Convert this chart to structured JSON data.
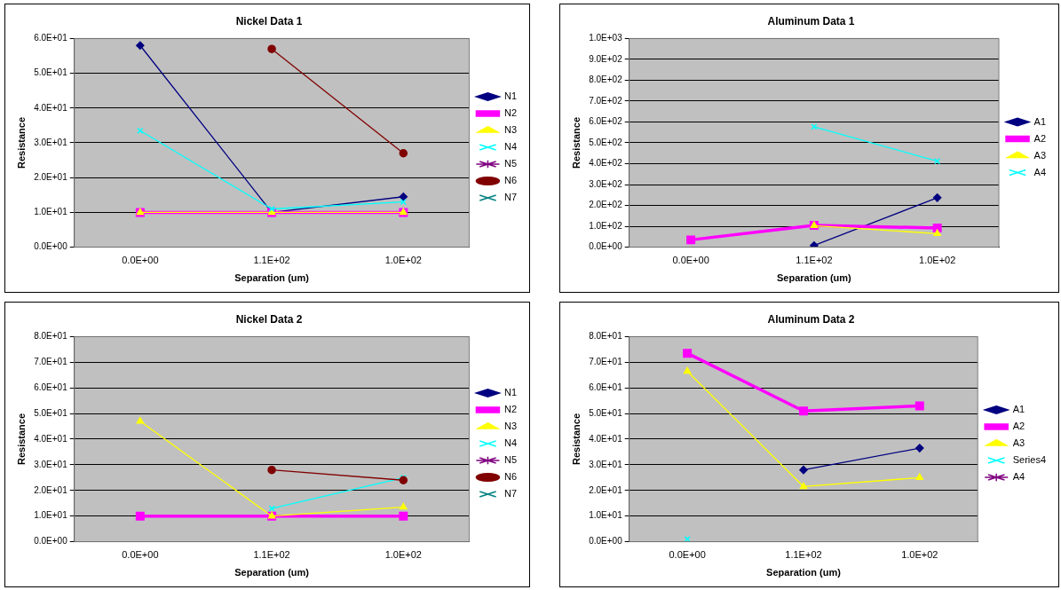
{
  "chart_data": [
    {
      "type": "line",
      "title": "Nickel Data 1",
      "xlabel": "Separation (um)",
      "ylabel": "Resistance",
      "categories": [
        "0.0E+00",
        "1.1E+02",
        "1.0E+02"
      ],
      "ylim": [
        0,
        60
      ],
      "yticks": [
        {
          "value": 0,
          "label": "0.0E+00"
        },
        {
          "value": 10,
          "label": "1.0E+01"
        },
        {
          "value": 20,
          "label": "2.0E+01"
        },
        {
          "value": 30,
          "label": "3.0E+01"
        },
        {
          "value": 40,
          "label": "4.0E+01"
        },
        {
          "value": 50,
          "label": "5.0E+01"
        },
        {
          "value": 60,
          "label": "6.0E+01"
        }
      ],
      "grid": "y",
      "legend": "right",
      "series": [
        {
          "name": "N1",
          "color": "#000080",
          "marker": "diamond",
          "values": [
            58,
            10,
            14.5
          ]
        },
        {
          "name": "N2",
          "color": "#ff00ff",
          "marker": "square",
          "values": [
            10,
            10,
            10
          ]
        },
        {
          "name": "N3",
          "color": "#ffff00",
          "marker": "triangle",
          "values": [
            10,
            10,
            10
          ]
        },
        {
          "name": "N4",
          "color": "#00ffff",
          "marker": "cross",
          "values": [
            33.5,
            11,
            13
          ]
        },
        {
          "name": "N5",
          "color": "#800080",
          "marker": "star",
          "values": [
            null,
            null,
            null
          ]
        },
        {
          "name": "N6",
          "color": "#800000",
          "marker": "circle",
          "values": [
            null,
            57,
            27
          ]
        },
        {
          "name": "N7",
          "color": "#008080",
          "marker": "cross",
          "values": [
            null,
            null,
            null
          ]
        }
      ]
    },
    {
      "type": "line",
      "title": "Aluminum Data 1",
      "xlabel": "Separation (um)",
      "ylabel": "Resistance",
      "categories": [
        "0.0E+00",
        "1.1E+02",
        "1.0E+02"
      ],
      "ylim": [
        0,
        1000
      ],
      "yticks": [
        {
          "value": 0,
          "label": "0.0E+00"
        },
        {
          "value": 100,
          "label": "1.0E+02"
        },
        {
          "value": 200,
          "label": "2.0E+02"
        },
        {
          "value": 300,
          "label": "3.0E+02"
        },
        {
          "value": 400,
          "label": "4.0E+02"
        },
        {
          "value": 500,
          "label": "5.0E+02"
        },
        {
          "value": 600,
          "label": "6.0E+02"
        },
        {
          "value": 700,
          "label": "7.0E+02"
        },
        {
          "value": 800,
          "label": "8.0E+02"
        },
        {
          "value": 900,
          "label": "9.0E+02"
        },
        {
          "value": 1000,
          "label": "1.0E+03"
        }
      ],
      "grid": "y",
      "legend": "right",
      "series": [
        {
          "name": "A1",
          "color": "#000080",
          "marker": "diamond",
          "values": [
            null,
            8,
            237
          ]
        },
        {
          "name": "A2",
          "color": "#ff00ff",
          "marker": "square",
          "values": [
            35,
            105,
            92
          ]
        },
        {
          "name": "A3",
          "color": "#ffff00",
          "marker": "triangle",
          "values": [
            null,
            103,
            65
          ]
        },
        {
          "name": "A4",
          "color": "#00ffff",
          "marker": "cross",
          "values": [
            null,
            577,
            412
          ]
        }
      ]
    },
    {
      "type": "line",
      "title": "Nickel Data 2",
      "xlabel": "Separation (um)",
      "ylabel": "Resistance",
      "categories": [
        "0.0E+00",
        "1.1E+02",
        "1.0E+02"
      ],
      "ylim": [
        0,
        80
      ],
      "yticks": [
        {
          "value": 0,
          "label": "0.0E+00"
        },
        {
          "value": 10,
          "label": "1.0E+01"
        },
        {
          "value": 20,
          "label": "2.0E+01"
        },
        {
          "value": 30,
          "label": "3.0E+01"
        },
        {
          "value": 40,
          "label": "4.0E+01"
        },
        {
          "value": 50,
          "label": "5.0E+01"
        },
        {
          "value": 60,
          "label": "6.0E+01"
        },
        {
          "value": 70,
          "label": "7.0E+01"
        },
        {
          "value": 80,
          "label": "8.0E+01"
        }
      ],
      "grid": "y",
      "legend": "right",
      "series": [
        {
          "name": "N1",
          "color": "#000080",
          "marker": "diamond",
          "values": [
            null,
            null,
            null
          ]
        },
        {
          "name": "N2",
          "color": "#ff00ff",
          "marker": "square",
          "values": [
            10,
            10,
            10
          ]
        },
        {
          "name": "N3",
          "color": "#ffff00",
          "marker": "triangle",
          "values": [
            47,
            10,
            13.5
          ]
        },
        {
          "name": "N4",
          "color": "#00ffff",
          "marker": "cross",
          "values": [
            null,
            13,
            25
          ]
        },
        {
          "name": "N5",
          "color": "#800080",
          "marker": "star",
          "values": [
            null,
            null,
            null
          ]
        },
        {
          "name": "N6",
          "color": "#800000",
          "marker": "circle",
          "values": [
            null,
            28,
            24
          ]
        },
        {
          "name": "N7",
          "color": "#008080",
          "marker": "cross",
          "values": [
            null,
            null,
            null
          ]
        }
      ]
    },
    {
      "type": "line",
      "title": "Aluminum Data 2",
      "xlabel": "Separation (um)",
      "ylabel": "Resistance",
      "categories": [
        "0.0E+00",
        "1.1E+02",
        "1.0E+02"
      ],
      "ylim": [
        0,
        80
      ],
      "yticks": [
        {
          "value": 0,
          "label": "0.0E+00"
        },
        {
          "value": 10,
          "label": "1.0E+01"
        },
        {
          "value": 20,
          "label": "2.0E+01"
        },
        {
          "value": 30,
          "label": "3.0E+01"
        },
        {
          "value": 40,
          "label": "4.0E+01"
        },
        {
          "value": 50,
          "label": "5.0E+01"
        },
        {
          "value": 60,
          "label": "6.0E+01"
        },
        {
          "value": 70,
          "label": "7.0E+01"
        },
        {
          "value": 80,
          "label": "8.0E+01"
        }
      ],
      "grid": "y",
      "legend": "right",
      "series": [
        {
          "name": "A1",
          "color": "#000080",
          "marker": "diamond",
          "values": [
            null,
            28,
            36.5
          ]
        },
        {
          "name": "A2",
          "color": "#ff00ff",
          "marker": "square",
          "values": [
            73.5,
            51,
            53
          ]
        },
        {
          "name": "A3",
          "color": "#ffff00",
          "marker": "triangle",
          "values": [
            66.5,
            21.5,
            25
          ]
        },
        {
          "name": "Series4",
          "color": "#00ffff",
          "marker": "cross",
          "values": [
            1,
            null,
            null
          ]
        },
        {
          "name": "A4",
          "color": "#800080",
          "marker": "star",
          "values": [
            null,
            null,
            null
          ]
        }
      ]
    }
  ]
}
